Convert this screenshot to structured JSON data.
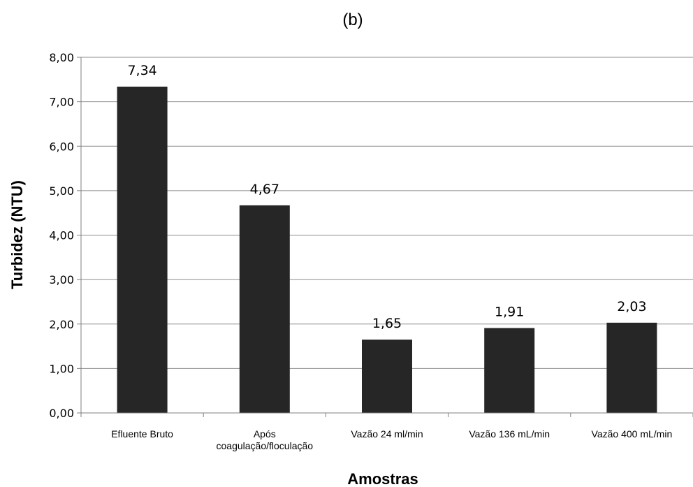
{
  "chart_data": {
    "type": "bar",
    "panel_label": "(b)",
    "title": "",
    "xlabel": "Amostras",
    "ylabel": "Turbidez (NTU)",
    "ylim": [
      0,
      8
    ],
    "yticks": [
      "0,00",
      "1,00",
      "2,00",
      "3,00",
      "4,00",
      "5,00",
      "6,00",
      "7,00",
      "8,00"
    ],
    "categories": [
      [
        "Efluente Bruto"
      ],
      [
        "Após",
        "coagulação/floculação"
      ],
      [
        "Vazão 24 ml/min"
      ],
      [
        "Vazão 136 mL/min"
      ],
      [
        "Vazão 400 mL/min"
      ]
    ],
    "values": [
      7.34,
      4.67,
      1.65,
      1.91,
      2.03
    ],
    "data_labels": [
      "7,34",
      "4,67",
      "1,65",
      "1,91",
      "2,03"
    ],
    "grid": true,
    "legend": "none",
    "bar_color": "#262626"
  }
}
